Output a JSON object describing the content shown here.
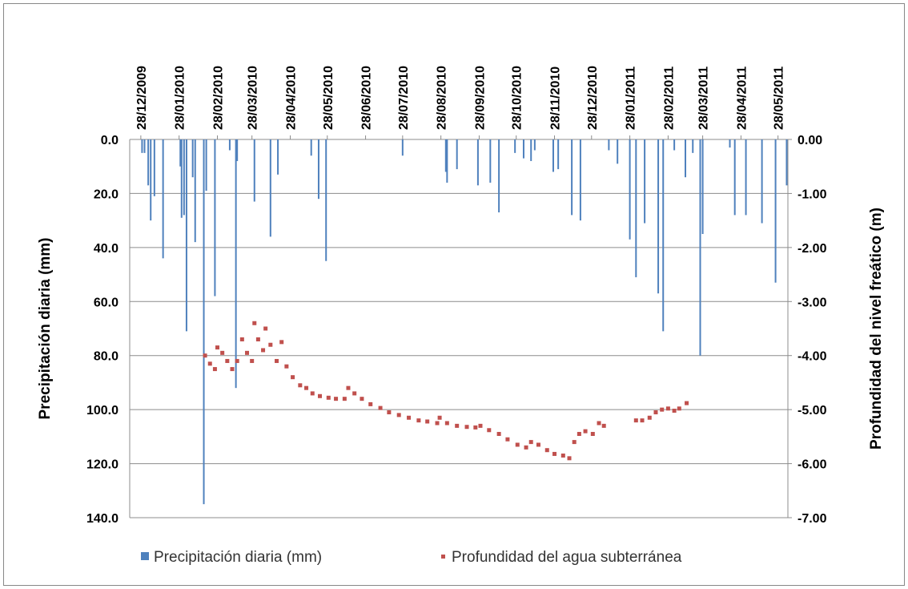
{
  "chart_data": {
    "type": "combo",
    "y_label": "Precipitación diaria (mm)",
    "y2_label": "Profundidad del nivel freático (m)",
    "xlim": [
      "19/12/2009",
      "05/06/2011"
    ],
    "xticks": [
      "28/12/2009",
      "28/01/2010",
      "28/02/2010",
      "28/03/2010",
      "28/04/2010",
      "28/05/2010",
      "28/06/2010",
      "28/07/2010",
      "28/08/2010",
      "28/09/2010",
      "28/10/2010",
      "28/11/2010",
      "28/12/2010",
      "28/01/2011",
      "28/02/2011",
      "28/03/2011",
      "28/04/2011",
      "28/05/2011"
    ],
    "ylim": [
      140,
      0
    ],
    "yticks": [
      {
        "value": 0,
        "label": "0.0"
      },
      {
        "value": 20,
        "label": "20.0"
      },
      {
        "value": 40,
        "label": "40.0"
      },
      {
        "value": 60,
        "label": "60.0"
      },
      {
        "value": 80,
        "label": "80.0"
      },
      {
        "value": 100,
        "label": "100.0"
      },
      {
        "value": 120,
        "label": "120.0"
      },
      {
        "value": 140,
        "label": "140.0"
      }
    ],
    "y2lim": [
      -7,
      0
    ],
    "y2ticks": [
      {
        "value": 0,
        "label": "0.00"
      },
      {
        "value": -1,
        "label": "-1.00"
      },
      {
        "value": -2,
        "label": "-2.00"
      },
      {
        "value": -3,
        "label": "-3.00"
      },
      {
        "value": -4,
        "label": "-4.00"
      },
      {
        "value": -5,
        "label": "-5.00"
      },
      {
        "value": -6,
        "label": "-6.00"
      },
      {
        "value": -7,
        "label": "-7.00"
      }
    ],
    "grid": true,
    "legend": "bottom",
    "series": [
      {
        "name": "Precipitación diaria (mm)",
        "type": "bar",
        "color": "#4f81bd",
        "x": [
          "29/12/2009",
          "31/12/2009",
          "03/01/2010",
          "05/01/2010",
          "08/01/2010",
          "15/01/2010",
          "29/01/2010",
          "30/01/2010",
          "01/02/2010",
          "03/02/2010",
          "08/02/2010",
          "10/02/2010",
          "17/02/2010",
          "19/02/2010",
          "26/02/2010",
          "10/03/2010",
          "15/03/2010",
          "16/03/2010",
          "30/03/2010",
          "12/04/2010",
          "18/04/2010",
          "15/05/2010",
          "21/05/2010",
          "27/05/2010",
          "28/07/2010",
          "01/09/2010",
          "02/09/2010",
          "10/09/2010",
          "27/09/2010",
          "07/10/2010",
          "14/10/2010",
          "27/10/2010",
          "03/11/2010",
          "09/11/2010",
          "12/11/2010",
          "27/11/2010",
          "01/12/2010",
          "12/12/2010",
          "19/12/2010",
          "11/01/2011",
          "18/01/2011",
          "28/01/2011",
          "02/02/2011",
          "09/02/2011",
          "20/02/2011",
          "24/02/2011",
          "05/03/2011",
          "14/03/2011",
          "20/03/2011",
          "26/03/2011",
          "28/03/2011",
          "19/04/2011",
          "23/04/2011",
          "02/05/2011",
          "15/05/2011",
          "26/05/2011",
          "04/06/2011"
        ],
        "values": [
          5,
          5,
          17,
          30,
          21,
          44,
          10,
          29,
          28,
          71,
          14,
          38,
          135,
          19,
          58,
          4,
          92,
          8,
          23,
          36,
          13,
          6,
          22,
          45,
          6,
          12,
          16,
          11,
          17,
          16,
          27,
          5,
          7,
          8,
          4,
          12,
          11,
          28,
          30,
          4,
          9,
          37,
          51,
          31,
          57,
          71,
          4,
          14,
          5,
          80,
          35,
          3,
          28,
          28,
          31,
          53,
          17
        ]
      },
      {
        "name": "Profundidad del agua subterránea",
        "type": "scatter",
        "axis": "y2",
        "color": "#c0504d",
        "x": [
          "18/02/2010",
          "22/02/2010",
          "26/02/2010",
          "28/02/2010",
          "04/03/2010",
          "08/03/2010",
          "12/03/2010",
          "16/03/2010",
          "20/03/2010",
          "24/03/2010",
          "28/03/2010",
          "30/03/2010",
          "02/04/2010",
          "06/04/2010",
          "08/04/2010",
          "12/04/2010",
          "17/04/2010",
          "21/04/2010",
          "25/04/2010",
          "30/04/2010",
          "06/05/2010",
          "11/05/2010",
          "16/05/2010",
          "22/05/2010",
          "29/05/2010",
          "04/06/2010",
          "11/06/2010",
          "14/06/2010",
          "19/06/2010",
          "25/06/2010",
          "02/07/2010",
          "10/07/2010",
          "17/07/2010",
          "25/07/2010",
          "02/08/2010",
          "10/08/2010",
          "17/08/2010",
          "25/08/2010",
          "27/08/2010",
          "02/09/2010",
          "10/09/2010",
          "18/09/2010",
          "25/09/2010",
          "29/09/2010",
          "06/10/2010",
          "14/10/2010",
          "21/10/2010",
          "29/10/2010",
          "05/11/2010",
          "09/11/2010",
          "15/11/2010",
          "22/11/2010",
          "28/11/2010",
          "05/12/2010",
          "10/12/2010",
          "14/12/2010",
          "18/12/2010",
          "23/12/2010",
          "29/12/2010",
          "03/01/2011",
          "07/01/2011",
          "02/02/2011",
          "07/02/2011",
          "13/02/2011",
          "18/02/2011",
          "23/02/2011",
          "28/02/2011",
          "05/03/2011",
          "09/03/2011",
          "15/03/2011"
        ],
        "values": [
          -4.0,
          -4.15,
          -4.25,
          -3.85,
          -3.95,
          -4.1,
          -4.25,
          -4.1,
          -3.7,
          -3.95,
          -4.1,
          -3.4,
          -3.7,
          -3.9,
          -3.5,
          -3.8,
          -4.1,
          -3.75,
          -4.2,
          -4.4,
          -4.55,
          -4.6,
          -4.7,
          -4.75,
          -4.78,
          -4.8,
          -4.8,
          -4.6,
          -4.7,
          -4.8,
          -4.9,
          -4.97,
          -5.05,
          -5.1,
          -5.15,
          -5.2,
          -5.22,
          -5.25,
          -5.15,
          -5.25,
          -5.3,
          -5.32,
          -5.33,
          -5.3,
          -5.38,
          -5.45,
          -5.55,
          -5.65,
          -5.7,
          -5.6,
          -5.65,
          -5.75,
          -5.82,
          -5.85,
          -5.9,
          -5.6,
          -5.45,
          -5.4,
          -5.45,
          -5.25,
          -5.3,
          -5.2,
          -5.2,
          -5.15,
          -5.05,
          -5.0,
          -4.98,
          -5.02,
          -4.98,
          -4.88
        ]
      }
    ]
  }
}
